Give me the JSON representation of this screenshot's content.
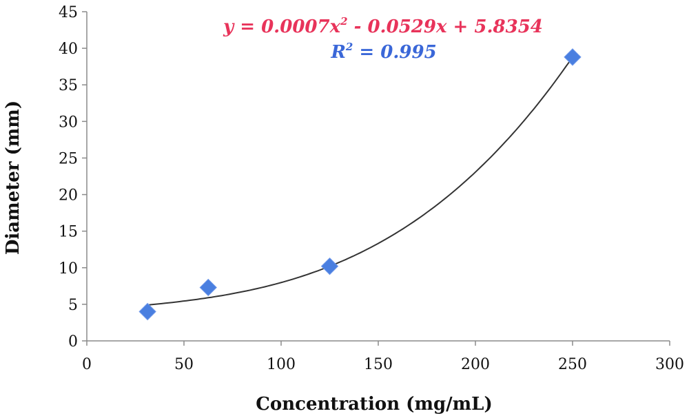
{
  "chart_data": {
    "type": "scatter",
    "xlabel": "Concentration (mg/mL)",
    "ylabel": "Diameter (mm)",
    "xlim": [
      0,
      300
    ],
    "ylim": [
      0,
      45
    ],
    "x_ticks": [
      "0",
      "50",
      "100",
      "150",
      "200",
      "250",
      "300"
    ],
    "y_ticks": [
      "0",
      "5",
      "10",
      "15",
      "20",
      "25",
      "30",
      "35",
      "40",
      "45"
    ],
    "grid": false,
    "series": [
      {
        "x": [
          31.25,
          62.5,
          125,
          250
        ],
        "y": [
          4,
          7.3,
          10.2,
          38.8
        ],
        "color": "#4a7fe0",
        "marker": "diamond"
      }
    ],
    "trendline": {
      "type": "polynomial",
      "coefficients": [
        0.0007,
        -0.0529,
        5.8354
      ],
      "x_range": [
        31.25,
        250
      ],
      "color": "#333333"
    },
    "annotations": {
      "equation": {
        "y": "y",
        "eq": " = 0.0007",
        "x2": "x",
        "sup2": "2",
        "mid": " - 0.0529",
        "x1": "x",
        "tail": " + 5.8354",
        "color": "#e8335a"
      },
      "r2": {
        "R": "R",
        "sup2": "2",
        "tail": " = 0.995",
        "color": "#3a67d8"
      }
    }
  }
}
